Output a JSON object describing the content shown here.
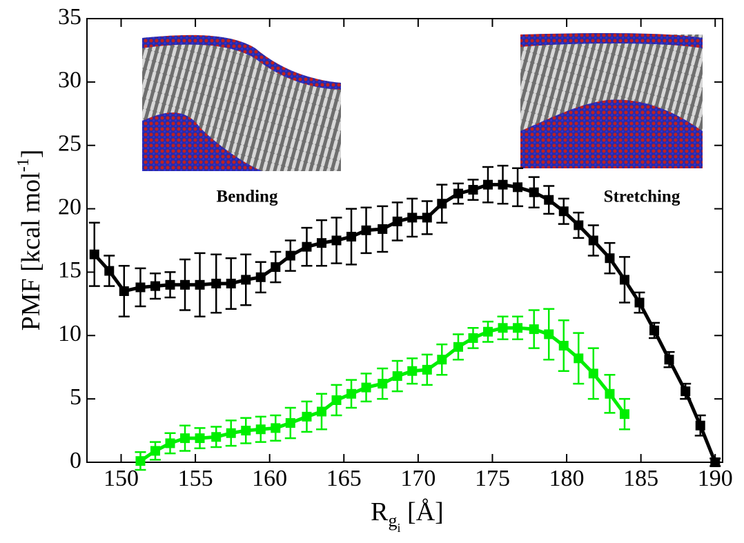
{
  "chart_data": {
    "type": "line",
    "ylabel": {
      "text": "PMF [kcal mol",
      "superscript": "-1",
      "end": "]"
    },
    "xlabel": {
      "text": "R",
      "subscript": "g",
      "sub_subscript": "i",
      "end": " [Å]"
    },
    "annotations": [
      "Bending",
      "Stretching"
    ],
    "xlim": [
      147.7,
      190.5
    ],
    "ylim": [
      0,
      35
    ],
    "xticks": [
      150,
      155,
      160,
      165,
      170,
      175,
      180,
      185,
      190
    ],
    "yticks": [
      0,
      5,
      10,
      15,
      20,
      25,
      30,
      35
    ],
    "series": [
      {
        "color": "#000000",
        "x": [
          148.2,
          149.2,
          150.2,
          151.3,
          152.3,
          153.3,
          154.3,
          155.3,
          156.4,
          157.4,
          158.4,
          159.4,
          160.4,
          161.4,
          162.5,
          163.5,
          164.5,
          165.5,
          166.5,
          167.6,
          168.6,
          169.6,
          170.6,
          171.6,
          172.7,
          173.7,
          174.7,
          175.7,
          176.7,
          177.8,
          178.8,
          179.8,
          180.8,
          181.8,
          182.9,
          183.9,
          184.9,
          185.9,
          186.9,
          188.0,
          189.0,
          190.0
        ],
        "values": [
          16.4,
          15.1,
          13.5,
          13.8,
          13.9,
          14.0,
          14.0,
          14.0,
          14.1,
          14.1,
          14.4,
          14.6,
          15.4,
          16.3,
          17.0,
          17.3,
          17.5,
          17.8,
          18.3,
          18.4,
          19.0,
          19.3,
          19.3,
          20.4,
          21.2,
          21.5,
          21.9,
          21.9,
          21.7,
          21.3,
          20.7,
          19.8,
          18.7,
          17.5,
          16.1,
          14.4,
          12.6,
          10.4,
          8.1,
          5.6,
          2.9,
          0
        ],
        "errors": [
          2.5,
          1.2,
          2.0,
          1.5,
          1.0,
          1.0,
          2.0,
          2.5,
          2.3,
          2.0,
          2.0,
          1.2,
          1.2,
          1.2,
          1.5,
          1.8,
          1.8,
          2.2,
          1.8,
          1.8,
          1.5,
          1.5,
          1.3,
          1.5,
          0.8,
          0.8,
          1.4,
          1.5,
          1.5,
          1.2,
          1.1,
          1.0,
          1.0,
          1.2,
          1.2,
          1.8,
          0.8,
          0.6,
          0.6,
          0.6,
          0.8,
          0.3
        ]
      },
      {
        "color": "#00ee00",
        "x": [
          151.3,
          152.3,
          153.3,
          154.3,
          155.3,
          156.4,
          157.4,
          158.4,
          159.4,
          160.4,
          161.4,
          162.5,
          163.5,
          164.5,
          165.5,
          166.5,
          167.6,
          168.6,
          169.6,
          170.6,
          171.6,
          172.7,
          173.7,
          174.7,
          175.7,
          176.7,
          177.8,
          178.8,
          179.8,
          180.8,
          181.8,
          182.9,
          183.9
        ],
        "values": [
          0.1,
          0.9,
          1.5,
          1.9,
          1.9,
          2.0,
          2.3,
          2.5,
          2.6,
          2.7,
          3.1,
          3.6,
          4.0,
          4.9,
          5.4,
          5.9,
          6.2,
          6.8,
          7.2,
          7.3,
          8.1,
          9.1,
          9.8,
          10.3,
          10.6,
          10.6,
          10.5,
          10.1,
          9.2,
          8.2,
          7.0,
          5.4,
          3.8
        ],
        "errors": [
          0.7,
          0.7,
          0.8,
          1.0,
          0.8,
          0.8,
          1.0,
          1.0,
          1.0,
          1.0,
          1.2,
          1.2,
          1.4,
          1.2,
          1.1,
          1.1,
          1.2,
          1.2,
          1.0,
          1.2,
          1.2,
          1.0,
          0.8,
          0.8,
          0.9,
          0.9,
          1.5,
          2.0,
          2.0,
          2.0,
          2.0,
          1.5,
          1.2
        ]
      }
    ]
  }
}
